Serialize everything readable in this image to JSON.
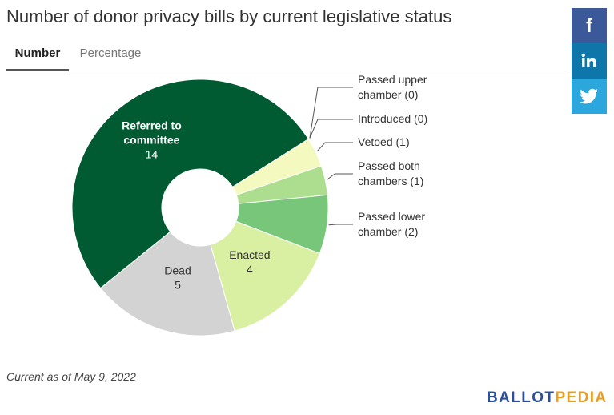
{
  "title": "Number of donor privacy bills by current legislative status",
  "tabs": [
    {
      "label": "Number",
      "active": true
    },
    {
      "label": "Percentage",
      "active": false
    }
  ],
  "social": [
    {
      "name": "facebook-icon",
      "color": "#3b5998"
    },
    {
      "name": "linkedin-icon",
      "color": "#0e76a8"
    },
    {
      "name": "twitter-icon",
      "color": "#2ca7dd"
    }
  ],
  "chart_data": {
    "type": "pie",
    "donut": true,
    "slices": [
      {
        "label": "Passed upper chamber (0)",
        "value": 0,
        "color": "#fdfdd6",
        "label_position": "outside"
      },
      {
        "label": "Introduced (0)",
        "value": 0,
        "color": "#f5f9c6",
        "label_position": "outside"
      },
      {
        "label": "Vetoed (1)",
        "value": 1,
        "color": "#f4fabf",
        "label_position": "outside"
      },
      {
        "label": "Passed both chambers (1)",
        "value": 1,
        "color": "#addd8e",
        "label_position": "outside"
      },
      {
        "label": "Passed lower chamber (2)",
        "value": 2,
        "color": "#78c679",
        "label_position": "outside"
      },
      {
        "label": "Enacted",
        "value": 4,
        "color": "#d9f0a3",
        "label_position": "inside"
      },
      {
        "label": "Dead",
        "value": 5,
        "color": "#d3d3d3",
        "label_position": "inside"
      },
      {
        "label": "Referred to committee",
        "value": 14,
        "color": "#005a32",
        "label_position": "inside"
      }
    ]
  },
  "footnote": "Current as of May 9, 2022",
  "brand": {
    "part1": "BALLOT",
    "part2": "PEDIA",
    "color1": "#2b4f9e",
    "color2": "#e89e1e"
  }
}
